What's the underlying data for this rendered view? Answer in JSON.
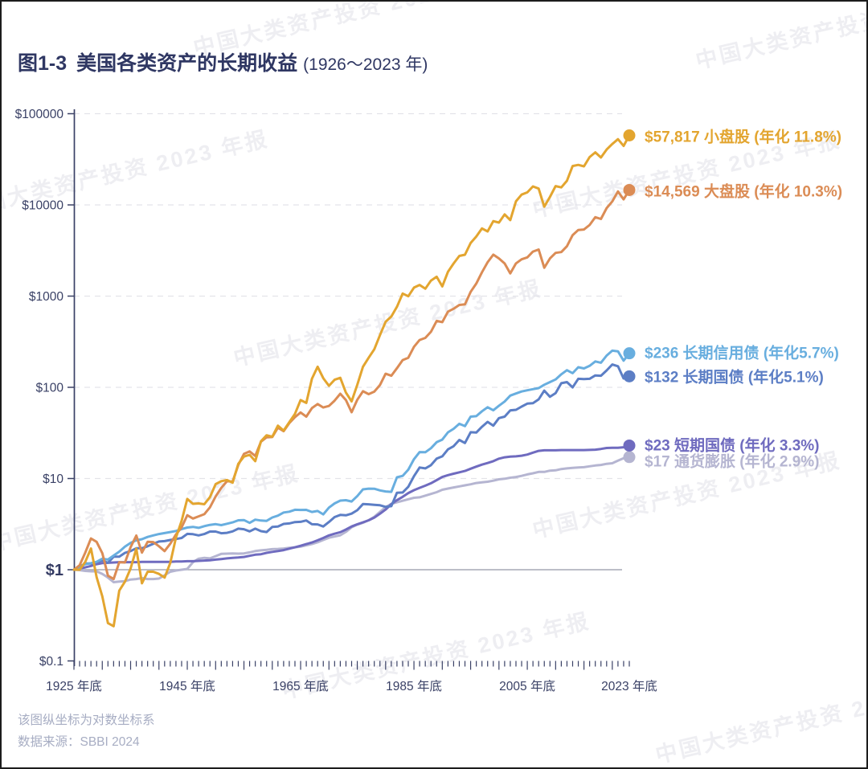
{
  "header": {
    "figure_label": "图1-3",
    "title": "美国各类资产的长期收益",
    "subtitle": "(1926～2023 年)"
  },
  "watermark": {
    "text": "中国大类资产投资 2023 年报"
  },
  "footnotes": {
    "line1": "该图纵坐标为对数坐标系",
    "line2": "数据来源：SBBI 2024"
  },
  "colors": {
    "title_navy": "#2F3763",
    "axis_navy": "#3A4166",
    "gridline": "#E3E3E9",
    "baseline_gray": "#A5A9B5",
    "footnote_gray": "#A7ADC3"
  },
  "chart_data": {
    "type": "line",
    "y_scale": "log",
    "title": "美国各类资产的长期收益 (1926～2023 年)",
    "ylim": [
      0.1,
      100000
    ],
    "grid": "dashed horizontal per decade",
    "baseline": {
      "value": 1,
      "label": "$1"
    },
    "y_ticks": [
      {
        "label": "$100000",
        "value": 100000
      },
      {
        "label": "$10000",
        "value": 10000
      },
      {
        "label": "$1000",
        "value": 1000
      },
      {
        "label": "$100",
        "value": 100
      },
      {
        "label": "$10",
        "value": 10
      },
      {
        "label": "$1",
        "value": 1
      },
      {
        "label": "$0.1",
        "value": 0.1
      }
    ],
    "x_start_year": 1925,
    "x_end_year": 2023,
    "x_tick_labels": [
      {
        "year": 1925,
        "label": "1925 年底"
      },
      {
        "year": 1945,
        "label": "1945 年底"
      },
      {
        "year": 1965,
        "label": "1965 年底"
      },
      {
        "year": 1985,
        "label": "1985 年底"
      },
      {
        "year": 2005,
        "label": "2005 年底"
      },
      {
        "year": 2023,
        "label": "2023 年底"
      }
    ],
    "series": [
      {
        "key": "inflation",
        "name": "通货膨胀",
        "label": "$17 通货膨胀 (年化 2.9%)",
        "end_value": 17,
        "annualized": "2.9%",
        "color": "#B5B5D1",
        "values": [
          1.0,
          0.99,
          0.97,
          0.96,
          0.96,
          0.9,
          0.82,
          0.73,
          0.74,
          0.75,
          0.78,
          0.79,
          0.81,
          0.79,
          0.79,
          0.8,
          0.87,
          0.95,
          0.98,
          1.0,
          1.02,
          1.21,
          1.32,
          1.35,
          1.33,
          1.41,
          1.49,
          1.5,
          1.51,
          1.5,
          1.51,
          1.55,
          1.6,
          1.63,
          1.65,
          1.68,
          1.69,
          1.71,
          1.74,
          1.76,
          1.79,
          1.85,
          1.91,
          2.0,
          2.12,
          2.24,
          2.31,
          2.39,
          2.6,
          2.92,
          3.12,
          3.27,
          3.49,
          3.81,
          4.31,
          4.85,
          5.28,
          5.49,
          5.7,
          5.92,
          6.15,
          6.22,
          6.49,
          6.78,
          7.09,
          7.53,
          7.76,
          7.98,
          8.2,
          8.42,
          8.64,
          8.92,
          9.07,
          9.22,
          9.47,
          9.79,
          9.94,
          10.2,
          10.4,
          10.7,
          11.1,
          11.4,
          11.8,
          11.8,
          12.2,
          12.3,
          12.7,
          12.9,
          13.1,
          13.2,
          13.3,
          13.6,
          13.9,
          14.1,
          14.5,
          14.7,
          15.7,
          16.7,
          17.2
        ]
      },
      {
        "key": "tbill",
        "name": "短期国债",
        "label": "$23 短期国债 (年化 3.3%)",
        "end_value": 23,
        "annualized": "3.3%",
        "color": "#6F6BBF",
        "values": [
          1.0,
          1.03,
          1.06,
          1.1,
          1.15,
          1.18,
          1.19,
          1.2,
          1.21,
          1.21,
          1.21,
          1.21,
          1.22,
          1.22,
          1.22,
          1.22,
          1.22,
          1.22,
          1.23,
          1.23,
          1.24,
          1.24,
          1.25,
          1.26,
          1.27,
          1.29,
          1.31,
          1.33,
          1.35,
          1.36,
          1.38,
          1.42,
          1.46,
          1.48,
          1.53,
          1.57,
          1.6,
          1.64,
          1.7,
          1.76,
          1.83,
          1.91,
          1.99,
          2.1,
          2.23,
          2.38,
          2.48,
          2.58,
          2.76,
          2.98,
          3.15,
          3.31,
          3.48,
          3.73,
          4.11,
          4.57,
          5.24,
          5.79,
          6.3,
          6.92,
          7.45,
          7.91,
          8.34,
          8.87,
          9.61,
          10.4,
          10.9,
          11.3,
          11.7,
          12.1,
          12.8,
          13.5,
          14.2,
          14.8,
          15.5,
          16.5,
          17.1,
          17.4,
          17.5,
          17.8,
          18.3,
          19.2,
          20.1,
          20.4,
          20.4,
          20.4,
          20.5,
          20.5,
          20.5,
          20.5,
          20.5,
          20.6,
          20.7,
          21.1,
          21.6,
          21.7,
          21.7,
          22.0,
          23.0
        ]
      },
      {
        "key": "lt-govt-bond",
        "name": "长期国债",
        "label": "$132 长期国债 (年化5.1%)",
        "end_value": 132,
        "annualized": "5.1%",
        "color": "#5C7EC5",
        "values": [
          1.0,
          1.08,
          1.17,
          1.17,
          1.21,
          1.26,
          1.19,
          1.39,
          1.39,
          1.53,
          1.6,
          1.72,
          1.72,
          1.81,
          1.92,
          2.04,
          2.06,
          2.12,
          2.17,
          2.23,
          2.47,
          2.45,
          2.38,
          2.46,
          2.62,
          2.62,
          2.51,
          2.54,
          2.63,
          2.82,
          2.78,
          2.63,
          2.82,
          2.65,
          2.59,
          2.95,
          2.98,
          3.18,
          3.22,
          3.33,
          3.35,
          3.47,
          3.15,
          3.14,
          2.98,
          3.34,
          3.78,
          3.99,
          3.95,
          4.12,
          4.5,
          5.25,
          5.21,
          5.15,
          5.09,
          4.89,
          4.98,
          6.99,
          7.03,
          8.11,
          10.6,
          13.2,
          12.9,
          14.0,
          16.5,
          17.5,
          20.9,
          22.6,
          26.5,
          24.5,
          32.2,
          31.9,
          36.9,
          41.8,
          38.0,
          46.0,
          47.7,
          55.9,
          56.7,
          61.5,
          66.3,
          67.1,
          73.8,
          92.1,
          78.7,
          86.4,
          111,
          114,
          99.7,
          124,
          123,
          124,
          135,
          134,
          153,
          178,
          170,
          125,
          132
        ]
      },
      {
        "key": "lt-credit-bond",
        "name": "长期信用债",
        "label": "$236 长期信用债 (年化5.7%)",
        "end_value": 236,
        "annualized": "5.7%",
        "color": "#68AEDF",
        "values": [
          1.0,
          1.07,
          1.15,
          1.18,
          1.22,
          1.32,
          1.29,
          1.43,
          1.58,
          1.79,
          1.97,
          2.1,
          2.16,
          2.29,
          2.38,
          2.46,
          2.52,
          2.59,
          2.66,
          2.79,
          2.9,
          2.95,
          2.88,
          3.0,
          3.1,
          3.16,
          3.08,
          3.19,
          3.3,
          3.48,
          3.5,
          3.26,
          3.54,
          3.46,
          3.43,
          3.74,
          3.92,
          4.24,
          4.33,
          4.54,
          4.52,
          4.53,
          4.3,
          4.41,
          4.05,
          4.8,
          5.33,
          5.72,
          5.78,
          5.6,
          6.42,
          7.61,
          7.74,
          7.73,
          7.41,
          7.21,
          7.14,
          10.3,
          10.7,
          12.5,
          16.3,
          19.5,
          19.4,
          21.5,
          25.0,
          26.7,
          32.1,
          35.1,
          39.8,
          37.5,
          47.7,
          48.3,
          54.6,
          60.5,
          56.0,
          62.9,
          69.9,
          81.1,
          85.5,
          90.0,
          92.7,
          95.4,
          97.9,
          106.6,
          114,
          122,
          139,
          154,
          143,
          166,
          161,
          172,
          192,
          186,
          223,
          252,
          248,
          196,
          236
        ]
      },
      {
        "key": "large-cap",
        "name": "大盘股",
        "label": "$14,569 大盘股 (年化 10.3%)",
        "end_value": 14569,
        "annualized": "10.3%",
        "color": "#DB8C55",
        "values": [
          1.0,
          1.12,
          1.54,
          2.2,
          2.02,
          1.52,
          0.86,
          0.79,
          1.21,
          1.2,
          1.77,
          2.37,
          1.54,
          2.02,
          2.01,
          1.81,
          1.6,
          1.93,
          2.43,
          2.91,
          3.96,
          3.64,
          3.85,
          4.06,
          4.83,
          6.36,
          7.89,
          9.34,
          9.24,
          14.1,
          18.6,
          19.8,
          17.7,
          25.3,
          28.3,
          28.5,
          36.1,
          33.0,
          40.5,
          47.1,
          53.0,
          47.7,
          59.1,
          65.6,
          60.1,
          62.5,
          71.4,
          85.0,
          72.5,
          53.3,
          73.1,
          90.6,
          84.1,
          89.6,
          106,
          141,
          134,
          162,
          199,
          211,
          278,
          330,
          348,
          406,
          534,
          518,
          676,
          727,
          800,
          811,
          1114,
          1371,
          1828,
          2351,
          2846,
          2587,
          2279,
          1775,
          2285,
          2533,
          2658,
          3077,
          3246,
          2045,
          2587,
          2976,
          3039,
          3525,
          4666,
          5305,
          5378,
          6021,
          7336,
          7014,
          9223,
          10919,
          14051,
          11505,
          14569
        ]
      },
      {
        "key": "small-cap",
        "name": "小盘股",
        "label": "$57,817 小盘股 (年化 11.8%)",
        "end_value": 57817,
        "annualized": "11.8%",
        "color": "#E3A52F",
        "values": [
          1.0,
          1.0,
          1.22,
          1.71,
          0.83,
          0.51,
          0.26,
          0.24,
          0.59,
          0.74,
          1.03,
          1.7,
          0.71,
          0.95,
          0.95,
          0.9,
          0.82,
          1.19,
          2.24,
          3.44,
          5.97,
          5.28,
          5.33,
          5.22,
          6.25,
          8.67,
          9.35,
          9.63,
          9.0,
          14.5,
          17.4,
          18.2,
          15.5,
          25.6,
          29.8,
          28.8,
          38.0,
          33.5,
          41.4,
          51.1,
          72.4,
          67.4,
          124,
          168,
          126,
          104,
          121,
          127,
          87.5,
          70.1,
          107,
          168,
          211,
          261,
          374,
          524,
          597,
          764,
          1067,
          995,
          1241,
          1327,
          1204,
          1479,
          1630,
          1278,
          1848,
          2278,
          2757,
          2842,
          3823,
          4496,
          5521,
          5118,
          6643,
          6404,
          7864,
          6818,
          10957,
          12973,
          13712,
          15934,
          15105,
          9561,
          12248,
          16082,
          15551,
          18382,
          26672,
          27445,
          26457,
          33468,
          37719,
          33079,
          40500,
          46500,
          52600,
          44300,
          57817
        ]
      }
    ]
  }
}
